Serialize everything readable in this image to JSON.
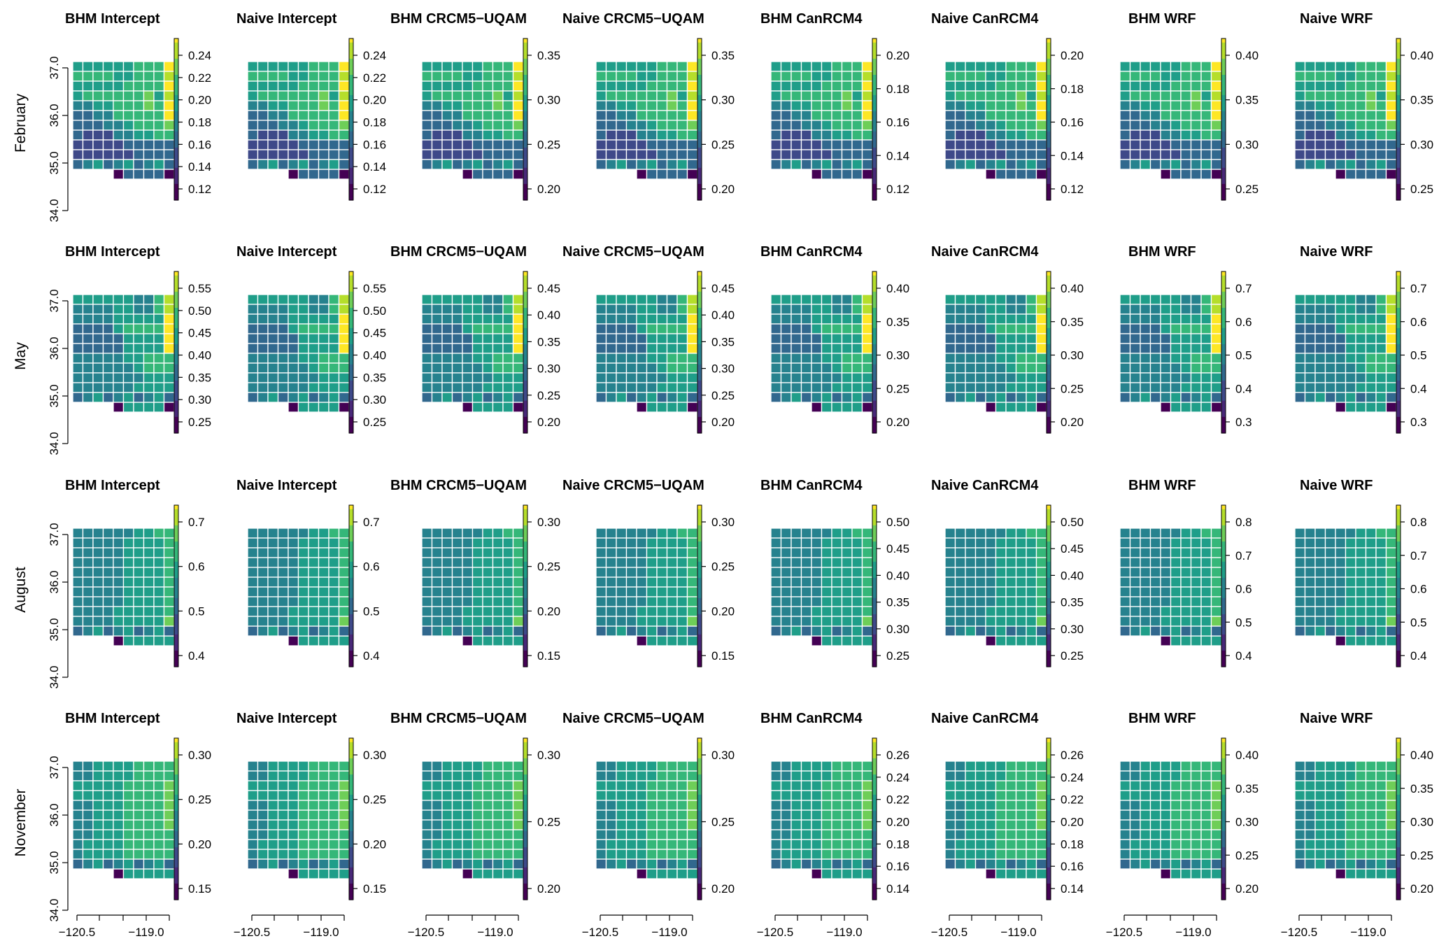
{
  "chart_data": {
    "type": "heatmap",
    "row_labels": [
      "February",
      "May",
      "August",
      "November"
    ],
    "column_titles": [
      "BHM Intercept",
      "Naive Intercept",
      "BHM CRCM5−UQAM",
      "Naive CRCM5−UQAM",
      "BHM CanRCM4",
      "Naive CanRCM4",
      "BHM WRF",
      "Naive WRF"
    ],
    "y_ticks": [
      "34.0",
      "35.0",
      "36.0",
      "37.0"
    ],
    "x_ticks": [
      "−120.5",
      "−119.0"
    ],
    "grid": {
      "rows": 12,
      "cols": 10,
      "lon_range": [
        -120.8,
        -118.8
      ],
      "lat_range": [
        34.3,
        36.5
      ]
    },
    "colormap": "viridis",
    "colors": [
      "#440154",
      "#482878",
      "#3e4989",
      "#31688e",
      "#26828e",
      "#1f9e89",
      "#35b779",
      "#6ece58",
      "#b5de2b",
      "#fde725"
    ],
    "colorbar_ticks": [
      [
        [
          "0.12",
          "0.14",
          "0.16",
          "0.18",
          "0.20",
          "0.22",
          "0.24"
        ],
        [
          "0.12",
          "0.14",
          "0.16",
          "0.18",
          "0.20",
          "0.22",
          "0.24"
        ],
        [
          "0.20",
          "0.25",
          "0.30",
          "0.35"
        ],
        [
          "0.20",
          "0.25",
          "0.30",
          "0.35"
        ],
        [
          "0.12",
          "0.14",
          "0.16",
          "0.18",
          "0.20"
        ],
        [
          "0.12",
          "0.14",
          "0.16",
          "0.18",
          "0.20"
        ],
        [
          "0.25",
          "0.30",
          "0.35",
          "0.40"
        ],
        [
          "0.25",
          "0.30",
          "0.35",
          "0.40"
        ]
      ],
      [
        [
          "0.25",
          "0.30",
          "0.35",
          "0.40",
          "0.45",
          "0.50",
          "0.55"
        ],
        [
          "0.25",
          "0.30",
          "0.35",
          "0.40",
          "0.45",
          "0.50",
          "0.55"
        ],
        [
          "0.20",
          "0.25",
          "0.30",
          "0.35",
          "0.40",
          "0.45"
        ],
        [
          "0.20",
          "0.25",
          "0.30",
          "0.35",
          "0.40",
          "0.45"
        ],
        [
          "0.20",
          "0.25",
          "0.30",
          "0.35",
          "0.40"
        ],
        [
          "0.20",
          "0.25",
          "0.30",
          "0.35",
          "0.40"
        ],
        [
          "0.3",
          "0.4",
          "0.5",
          "0.6",
          "0.7"
        ],
        [
          "0.3",
          "0.4",
          "0.5",
          "0.6",
          "0.7"
        ]
      ],
      [
        [
          "0.4",
          "0.5",
          "0.6",
          "0.7"
        ],
        [
          "0.4",
          "0.5",
          "0.6",
          "0.7"
        ],
        [
          "0.15",
          "0.20",
          "0.25",
          "0.30"
        ],
        [
          "0.15",
          "0.20",
          "0.25",
          "0.30"
        ],
        [
          "0.25",
          "0.30",
          "0.35",
          "0.40",
          "0.45",
          "0.50"
        ],
        [
          "0.25",
          "0.30",
          "0.35",
          "0.40",
          "0.45",
          "0.50"
        ],
        [
          "0.4",
          "0.5",
          "0.6",
          "0.7",
          "0.8"
        ],
        [
          "0.4",
          "0.5",
          "0.6",
          "0.7",
          "0.8"
        ]
      ],
      [
        [
          "0.15",
          "0.20",
          "0.25",
          "0.30"
        ],
        [
          "0.15",
          "0.20",
          "0.25",
          "0.30"
        ],
        [
          "0.20",
          "0.25",
          "0.30"
        ],
        [
          "0.20",
          "0.25",
          "0.30"
        ],
        [
          "0.14",
          "0.16",
          "0.18",
          "0.20",
          "0.22",
          "0.24",
          "0.26"
        ],
        [
          "0.14",
          "0.16",
          "0.18",
          "0.20",
          "0.22",
          "0.24",
          "0.26"
        ],
        [
          "0.20",
          "0.25",
          "0.30",
          "0.35",
          "0.40"
        ],
        [
          "0.20",
          "0.25",
          "0.30",
          "0.35",
          "0.40"
        ]
      ]
    ],
    "cells": [
      [
        "5555556669",
        "6666556668",
        "5555566669",
        "5666666758",
        "4455666769",
        "3344666669",
        "3334456667",
        "3222445566",
        "2222233333",
        "2222223333",
        "0000000000",
        "0000033330"
      ],
      [
        "5555554468",
        "4444554468",
        "4444555559",
        "3333566669",
        "3333355559",
        "3333355559",
        "4444455666",
        "4444445666",
        "4444444555",
        "4444445555",
        "0000000000",
        "0000055550"
      ],
      [
        "4444445566",
        "4444455556",
        "4444455556",
        "4444455556",
        "4444455556",
        "4444455556",
        "4444455556",
        "4444455556",
        "4444555556",
        "4444555557",
        "0000000000",
        "0000055555"
      ],
      [
        "4455556666",
        "4455556666",
        "5555566667",
        "5555566667",
        "4455566667",
        "4455566667",
        "4455566667",
        "4455566666",
        "4555566666",
        "4555566666",
        "0000000000",
        "0000055555"
      ]
    ],
    "shading_notes": "Cell colours approximate the viridis shading of each 12x10 grid per season; variants differ slightly by model."
  }
}
